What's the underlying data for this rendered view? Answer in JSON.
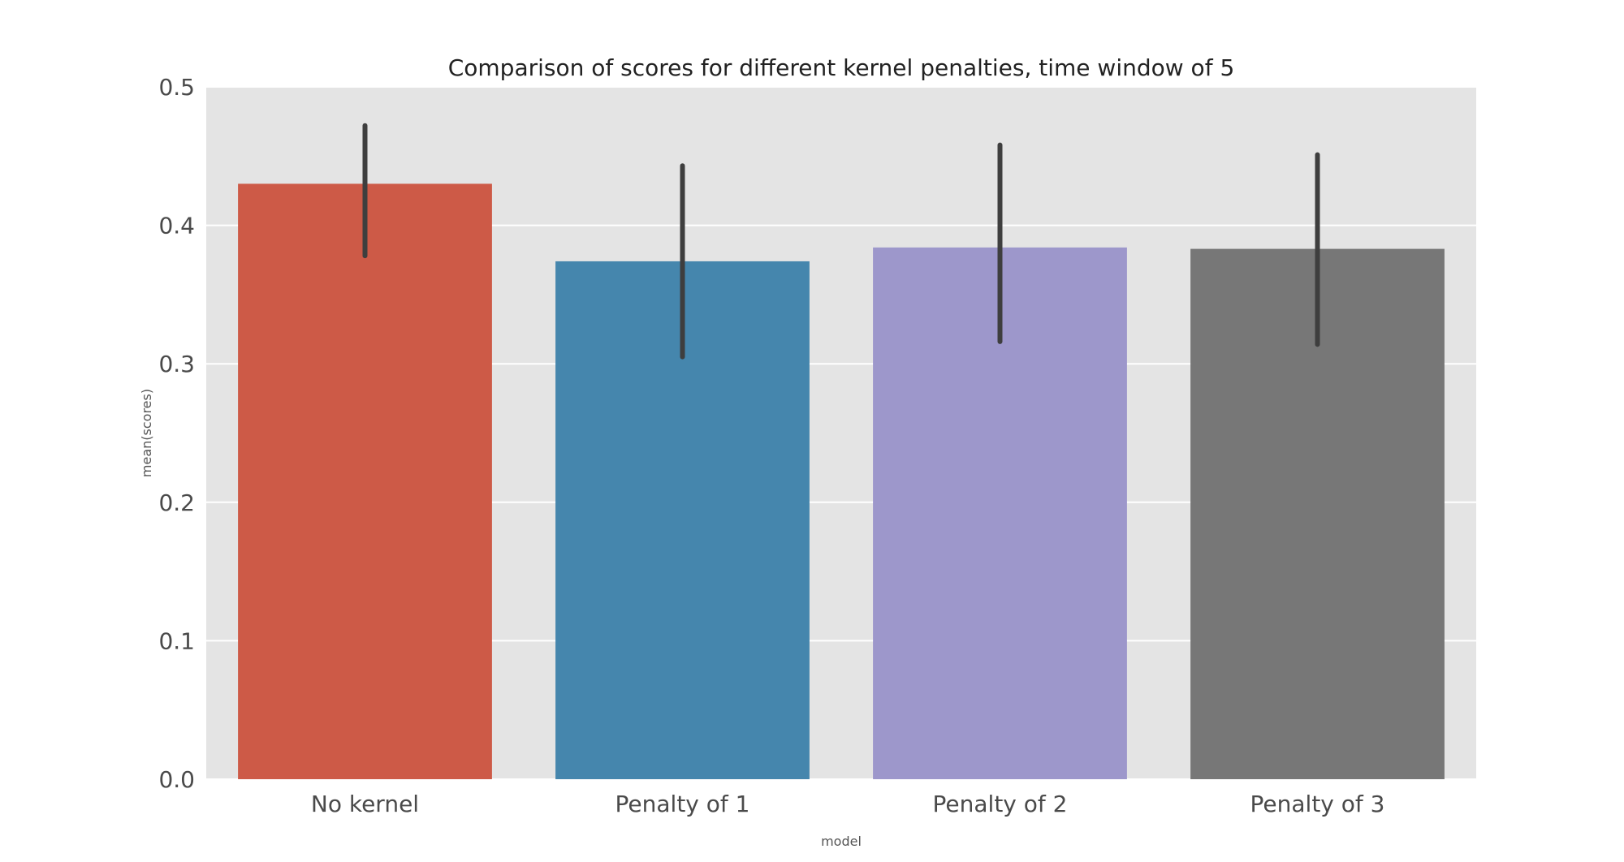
{
  "chart_data": {
    "type": "bar",
    "title": "Comparison of scores for different kernel penalties, time window of 5",
    "xlabel": "model",
    "ylabel": "mean(scores)",
    "categories": [
      "No kernel",
      "Penalty of 1",
      "Penalty of 2",
      "Penalty of 3"
    ],
    "values": [
      0.43,
      0.374,
      0.384,
      0.383
    ],
    "error_low": [
      0.378,
      0.305,
      0.316,
      0.314
    ],
    "error_high": [
      0.472,
      0.443,
      0.458,
      0.451
    ],
    "colors": [
      "#cd5a47",
      "#4586ad",
      "#9d97cb",
      "#777777"
    ],
    "error_color": "#3e3e3e",
    "ylim": [
      0.0,
      0.5
    ],
    "yticks": [
      0.0,
      0.1,
      0.2,
      0.3,
      0.4,
      0.5
    ],
    "ytick_labels": [
      "0.0",
      "0.1",
      "0.2",
      "0.3",
      "0.4",
      "0.5"
    ],
    "grid": true,
    "legend": "none",
    "plot_background": "#e4e4e4",
    "grid_color": "#ffffff"
  }
}
